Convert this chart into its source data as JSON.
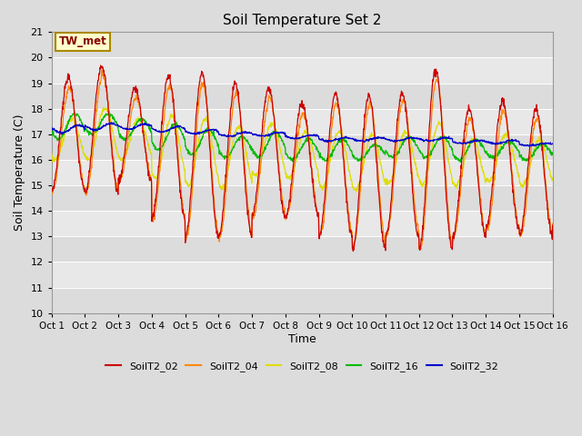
{
  "title": "Soil Temperature Set 2",
  "xlabel": "Time",
  "ylabel": "Soil Temperature (C)",
  "annotation": "TW_met",
  "ylim": [
    10.0,
    21.0
  ],
  "yticks": [
    10.0,
    11.0,
    12.0,
    13.0,
    14.0,
    15.0,
    16.0,
    17.0,
    18.0,
    19.0,
    20.0,
    21.0
  ],
  "xtick_labels": [
    "Oct 1",
    "Oct 2",
    "Oct 3",
    "Oct 4",
    "Oct 5",
    "Oct 6",
    "Oct 7",
    "Oct 8",
    "Oct 9",
    "Oct 10",
    "Oct 11",
    "Oct 12",
    "Oct 13",
    "Oct 14",
    "Oct 15",
    "Oct 16"
  ],
  "colors": {
    "SoilT2_02": "#cc0000",
    "SoilT2_04": "#ff8800",
    "SoilT2_08": "#dddd00",
    "SoilT2_16": "#00bb00",
    "SoilT2_32": "#0000cc"
  },
  "fig_bg": "#dcdcdc",
  "plot_bg": "#dcdcdc",
  "stripe_colors": [
    "#dcdcdc",
    "#e8e8e8"
  ]
}
